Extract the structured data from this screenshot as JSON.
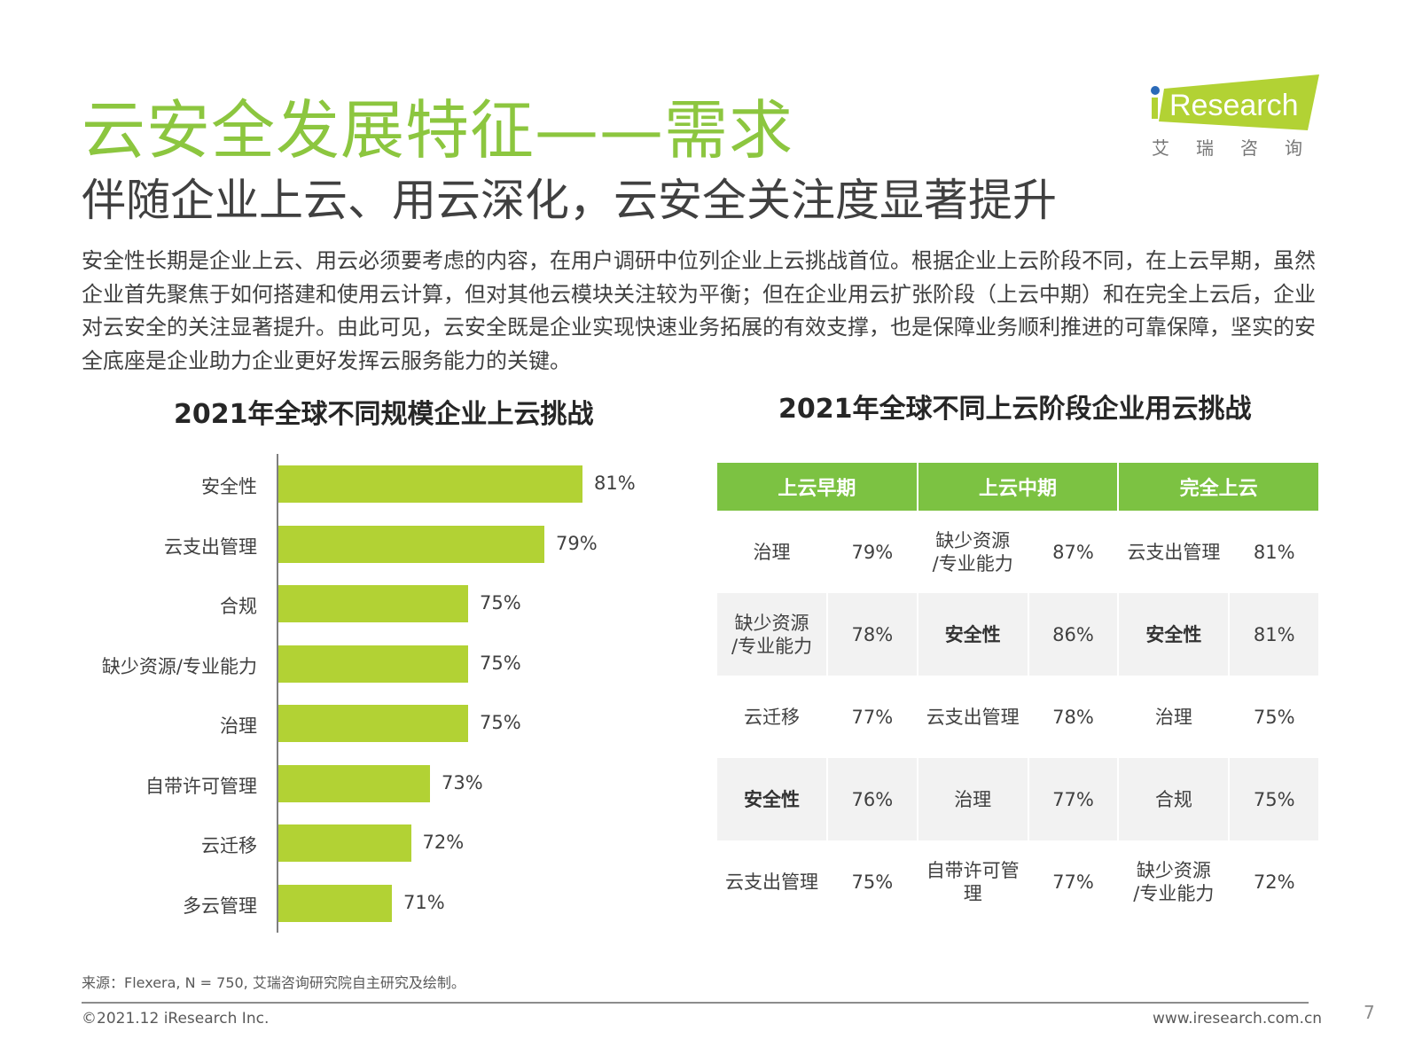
{
  "title": "云安全发展特征——需求",
  "subtitle": "伴随企业上云、用云深化，云安全关注度显著提升",
  "body": "安全性长期是企业上云、用云必须要考虑的内容，在用户调研中位列企业上云挑战首位。根据企业上云阶段不同，在上云早期，虽然企业首先聚焦于如何搭建和使用云计算，但对其他云模块关注较为平衡；但在企业用云扩张阶段（上云中期）和在完全上云后，企业对云安全的关注显著提升。由此可见，云安全既是企业实现快速业务拓展的有效支撑，也是保障业务顺利推进的可靠保障，坚实的安全底座是企业助力企业更好发挥云服务能力的关键。",
  "logo": {
    "text": "iResearch",
    "cn": "艾 瑞 咨 询",
    "colors": {
      "green": "#b2d234",
      "dot": "#2a6ab8"
    }
  },
  "accent": "#8cc63f",
  "chart_data": {
    "type": "bar",
    "orientation": "horizontal",
    "title": "2021年全球不同规模企业上云挑战",
    "categories": [
      "安全性",
      "云支出管理",
      "合规",
      "缺少资源/专业能力",
      "治理",
      "自带许可管理",
      "云迁移",
      "多云管理"
    ],
    "values": [
      81,
      79,
      75,
      75,
      75,
      73,
      72,
      71
    ],
    "labels": [
      "81%",
      "79%",
      "75%",
      "75%",
      "75%",
      "73%",
      "72%",
      "71%"
    ],
    "unit": "%",
    "color": "#b2d234",
    "xlim": [
      65,
      85
    ]
  },
  "table": {
    "title": "2021年全球不同上云阶段企业用云挑战",
    "headers": [
      "上云早期",
      "上云中期",
      "完全上云"
    ],
    "rows": [
      [
        {
          "t": "治理",
          "v": "79%"
        },
        {
          "t": "缺少资源\n/专业能力",
          "v": "87%"
        },
        {
          "t": "云支出管理",
          "v": "81%"
        }
      ],
      [
        {
          "t": "缺少资源\n/专业能力",
          "v": "78%"
        },
        {
          "t": "安全性",
          "v": "86%",
          "b": true
        },
        {
          "t": "安全性",
          "v": "81%",
          "b": true
        }
      ],
      [
        {
          "t": "云迁移",
          "v": "77%"
        },
        {
          "t": "云支出管理",
          "v": "78%"
        },
        {
          "t": "治理",
          "v": "75%"
        }
      ],
      [
        {
          "t": "安全性",
          "v": "76%",
          "b": true
        },
        {
          "t": "治理",
          "v": "77%"
        },
        {
          "t": "合规",
          "v": "75%"
        }
      ],
      [
        {
          "t": "云支出管理",
          "v": "75%"
        },
        {
          "t": "自带许可管\n理",
          "v": "77%"
        },
        {
          "t": "缺少资源\n/专业能力",
          "v": "72%"
        }
      ]
    ]
  },
  "footer": {
    "source": "来源：Flexera, N = 750, 艾瑞咨询研究院自主研究及绘制。",
    "copyright": "©2021.12 iResearch Inc.",
    "website": "www.iresearch.com.cn",
    "page": "7"
  }
}
